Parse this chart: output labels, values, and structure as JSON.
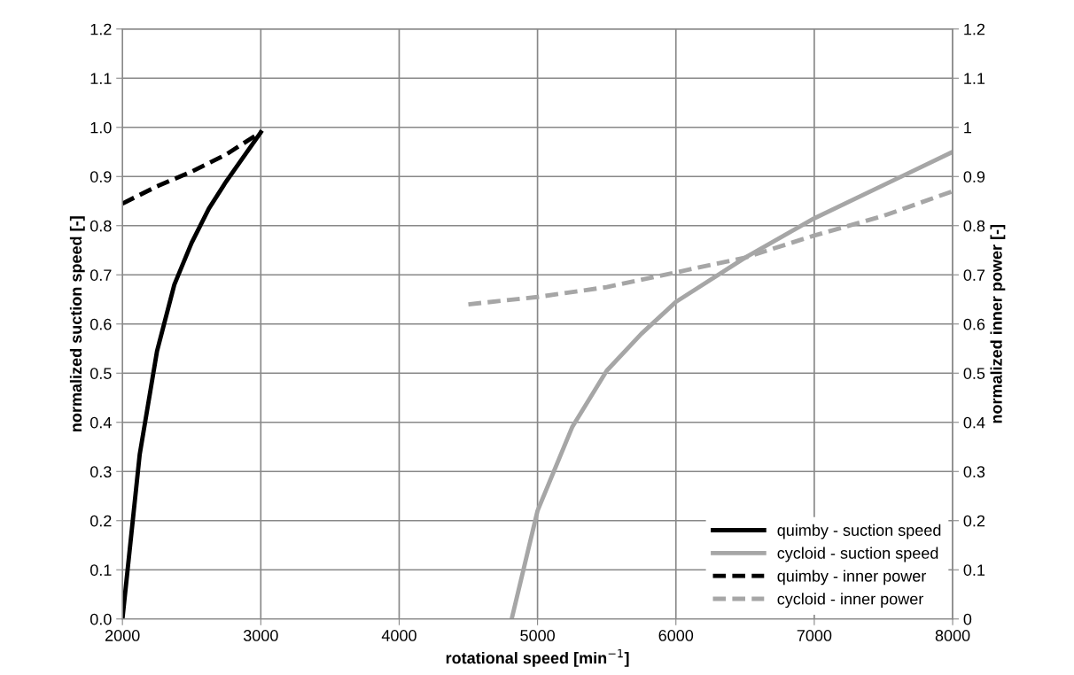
{
  "chart_data": {
    "type": "line",
    "xlabel": "rotational speed [min$^{−1}$]",
    "ylabel": "normalized suction speed [-]",
    "y2label": "normalized inner power [-]",
    "xlim": [
      2000,
      8000
    ],
    "xticks": [
      2000,
      3000,
      4000,
      5000,
      6000,
      7000,
      8000
    ],
    "ylim": [
      0,
      1.2
    ],
    "yticks": [
      {
        "value": 0,
        "label": "0.0"
      },
      {
        "value": 0.1,
        "label": "0.1"
      },
      {
        "value": 0.2,
        "label": "0.2"
      },
      {
        "value": 0.3,
        "label": "0.3"
      },
      {
        "value": 0.4,
        "label": "0.4"
      },
      {
        "value": 0.5,
        "label": "0.5"
      },
      {
        "value": 0.6,
        "label": "0.6"
      },
      {
        "value": 0.7,
        "label": "0.7"
      },
      {
        "value": 0.8,
        "label": "0.8"
      },
      {
        "value": 0.9,
        "label": "0.9"
      },
      {
        "value": 1.0,
        "label": "1.0"
      },
      {
        "value": 1.1,
        "label": "1.1"
      },
      {
        "value": 1.2,
        "label": "1.2"
      }
    ],
    "y2lim": [
      0,
      1.2
    ],
    "y2ticks": [
      0,
      0.1,
      0.2,
      0.3,
      0.4,
      0.5,
      0.6,
      0.7,
      0.8,
      0.9,
      1,
      1.1,
      1.2
    ],
    "grid": true,
    "legend": "bottom right",
    "marker": "none",
    "series": [
      {
        "name": "quimby - suction speed",
        "color": "#000000",
        "line_style": "solid",
        "x": [
          2000,
          2125,
          2250,
          2375,
          2500,
          2625,
          2750,
          3000
        ],
        "values": [
          0,
          0.335,
          0.545,
          0.68,
          0.765,
          0.835,
          0.89,
          0.99
        ]
      },
      {
        "name": "cycloid - suction speed",
        "color": "#a6a6a6",
        "line_style": "solid",
        "x": [
          4813,
          5000,
          5250,
          5500,
          5750,
          6000,
          6500,
          7000,
          8000
        ],
        "values": [
          0,
          0.22,
          0.39,
          0.505,
          0.58,
          0.645,
          0.735,
          0.815,
          0.95
        ]
      },
      {
        "name": "quimby - inner power",
        "color": "#000000",
        "line_style": "dashed",
        "axis": "y2",
        "x": [
          2000,
          2250,
          2500,
          2750,
          3000
        ],
        "values": [
          0.845,
          0.88,
          0.91,
          0.945,
          0.99
        ]
      },
      {
        "name": "cycloid - inner power",
        "color": "#a6a6a6",
        "line_style": "dashed",
        "axis": "y2",
        "x": [
          4500,
          5000,
          5500,
          6000,
          6500,
          7000,
          7500,
          8000
        ],
        "values": [
          0.64,
          0.655,
          0.675,
          0.705,
          0.735,
          0.78,
          0.82,
          0.87
        ]
      }
    ]
  }
}
